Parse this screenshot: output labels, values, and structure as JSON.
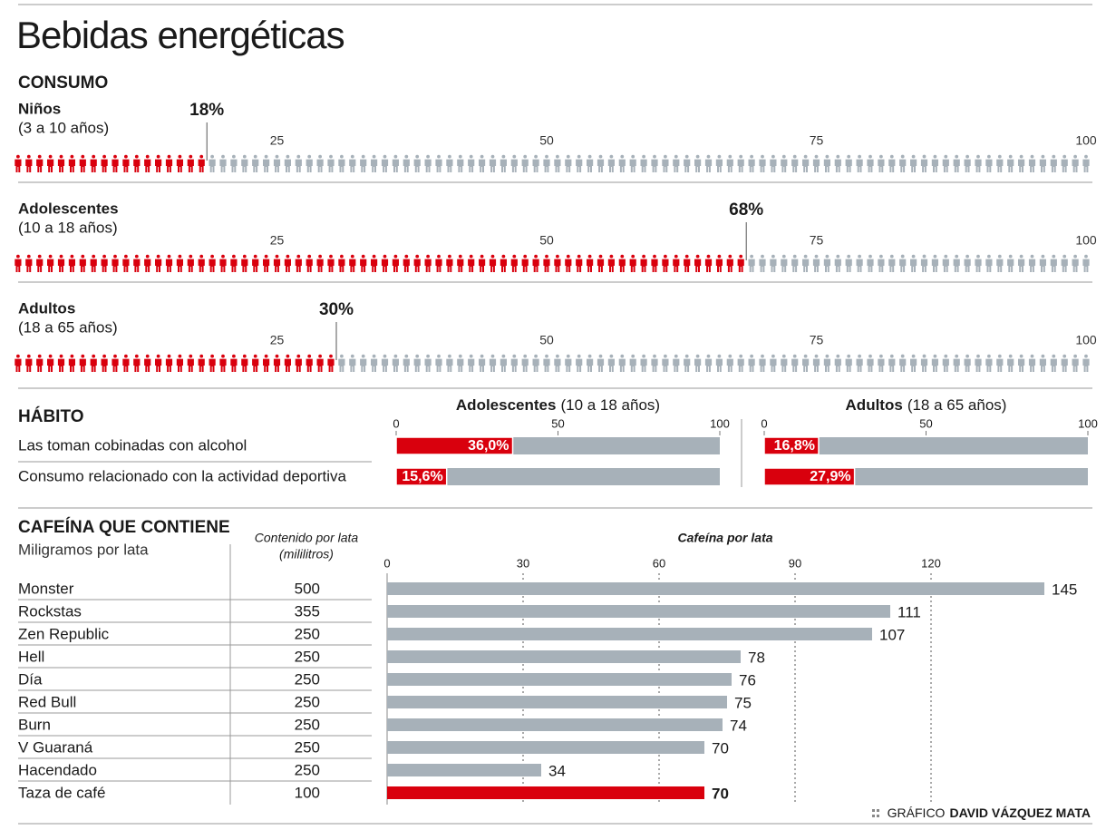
{
  "title": "Bebidas energéticas",
  "credit_prefix": "GRÁFICO",
  "credit_name": "DAVID VÁZQUEZ MATA",
  "chart_data": [
    {
      "type": "pictogram",
      "title": "CONSUMO",
      "categories": [
        "Niños",
        "Adolescentes",
        "Adultos"
      ],
      "subtitles": [
        "(3 a 10 años)",
        "(10 a 18 años)",
        "(18 a 65 años)"
      ],
      "values": [
        18,
        68,
        30
      ],
      "value_labels": [
        "18%",
        "68%",
        "30%"
      ],
      "xlim": [
        0,
        100
      ],
      "xticks": [
        25,
        50,
        75,
        100
      ],
      "color": "#d9000d",
      "rest_color": "#a7b1b9"
    },
    {
      "type": "bar",
      "orientation": "horizontal",
      "title": "HÁBITO",
      "categories": [
        "Las toman cobinadas con alcohol",
        "Consumo relacionado con la actividad deportiva"
      ],
      "series": [
        {
          "name": "Adolescentes",
          "subtitle": "(10 a 18 años)",
          "values": [
            36.0,
            15.6
          ],
          "value_labels": [
            "36,0%",
            "15,6%"
          ]
        },
        {
          "name": "Adultos",
          "subtitle": "(18 a 65 años)",
          "values": [
            16.8,
            27.9
          ],
          "value_labels": [
            "16,8%",
            "27,9%"
          ]
        }
      ],
      "xlim": [
        0,
        100
      ],
      "xticks": [
        0,
        50,
        100
      ],
      "color": "#d9000d",
      "track_color": "#a7b1b9"
    },
    {
      "type": "bar",
      "orientation": "horizontal",
      "title": "CAFEÍNA QUE CONTIENE",
      "subtitle": "Miligramos por lata",
      "column_header": [
        "Contenido por lata",
        "(mililitros)"
      ],
      "x_label": "Cafeína por lata",
      "categories": [
        "Monster",
        "Rockstas",
        "Zen Republic",
        "Hell",
        "Día",
        "Red Bull",
        "Burn",
        "V Guaraná",
        "Hacendado",
        "Taza de café"
      ],
      "volumes": [
        500,
        355,
        250,
        250,
        250,
        250,
        250,
        250,
        250,
        100
      ],
      "values": [
        145,
        111,
        107,
        78,
        76,
        75,
        74,
        70,
        34,
        70
      ],
      "colors": [
        "#a7b1b9",
        "#a7b1b9",
        "#a7b1b9",
        "#a7b1b9",
        "#a7b1b9",
        "#a7b1b9",
        "#a7b1b9",
        "#a7b1b9",
        "#a7b1b9",
        "#d9000d"
      ],
      "xlim": [
        0,
        150
      ],
      "xticks": [
        0,
        30,
        60,
        90,
        120
      ],
      "grid": true
    }
  ]
}
